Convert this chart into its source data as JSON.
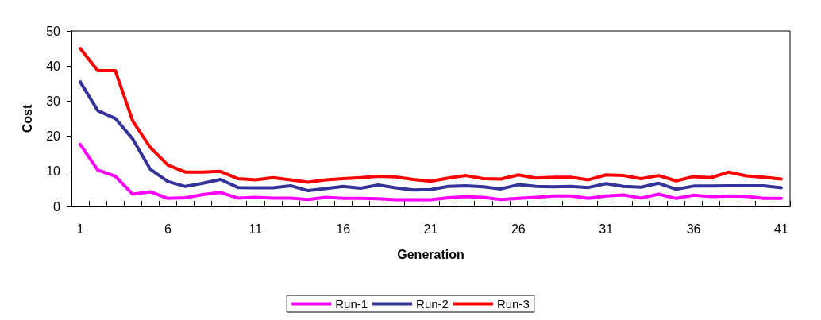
{
  "chart_data": {
    "type": "line",
    "xlabel": "Generation",
    "ylabel": "Cost",
    "categories": [
      "1",
      null,
      null,
      null,
      null,
      "6",
      null,
      null,
      null,
      null,
      "11",
      null,
      null,
      null,
      null,
      "16",
      null,
      null,
      null,
      null,
      "21",
      null,
      null,
      null,
      null,
      "26",
      null,
      null,
      null,
      null,
      "31",
      null,
      null,
      null,
      null,
      "36",
      null,
      null,
      null,
      null,
      "41"
    ],
    "series": [
      {
        "name": "Run-1",
        "color": "#ff00ff",
        "values": [
          17.7,
          10.4,
          8.6,
          3.5,
          4.2,
          2.3,
          2.5,
          3.4,
          4,
          2.4,
          2.6,
          2.4,
          2.4,
          2,
          2.6,
          2.3,
          2.3,
          2.2,
          1.9,
          1.9,
          1.9,
          2.5,
          2.8,
          2.6,
          2,
          2.3,
          2.6,
          3,
          3,
          2.3,
          3,
          3.3,
          2.4,
          3.5,
          2.3,
          3.2,
          2.8,
          3,
          2.9,
          2.3,
          2.3
        ]
      },
      {
        "name": "Run-2",
        "color": "#333399",
        "values": [
          35.5,
          27.3,
          25.1,
          19.2,
          10.6,
          7.1,
          5.7,
          6.6,
          7.7,
          5.4,
          5.3,
          5.3,
          5.9,
          4.5,
          5.1,
          5.7,
          5.2,
          6.1,
          5.3,
          4.7,
          4.8,
          5.7,
          5.9,
          5.6,
          5,
          6.2,
          5.7,
          5.6,
          5.7,
          5.4,
          6.5,
          5.7,
          5.5,
          6.6,
          4.9,
          5.8,
          5.8,
          5.9,
          5.9,
          5.9,
          5.3
        ]
      },
      {
        "name": "Run-3",
        "color": "#ff0000",
        "values": [
          45,
          38.7,
          38.7,
          24.3,
          16.8,
          11.8,
          9.8,
          9.8,
          10,
          7.9,
          7.6,
          8.2,
          7.6,
          6.9,
          7.6,
          7.9,
          8.2,
          8.6,
          8.4,
          7.7,
          7.2,
          8.1,
          8.8,
          7.9,
          7.8,
          9,
          8.1,
          8.3,
          8.3,
          7.6,
          9,
          8.8,
          7.9,
          8.8,
          7.3,
          8.5,
          8.2,
          9.8,
          8.7,
          8.3,
          7.8
        ]
      }
    ],
    "ylim": [
      0,
      50
    ],
    "yticks": [
      0,
      10,
      20,
      30,
      40,
      50
    ],
    "grid": false,
    "legend": "bottom",
    "marker": "none",
    "line_style": "solid"
  }
}
